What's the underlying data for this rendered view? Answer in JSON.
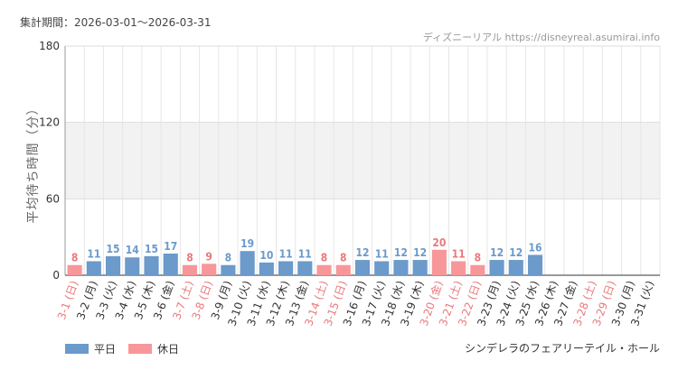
{
  "header": {
    "period": "集計期間：2026-03-01～2026-03-31",
    "credit": "ディズニーリアル https://disneyreal.asumirai.info"
  },
  "footer": {
    "attraction": "シンデレラのフェアリーテイル・ホール"
  },
  "colors": {
    "weekday": "#6b9acb",
    "holiday": "#f7979a",
    "holiday_label": "#e9797d",
    "band": "#f2f2f2",
    "grid": "#e6e6e6",
    "axis": "#333333"
  },
  "chart_data": {
    "type": "bar",
    "ylabel": "平均待ち時間（分）",
    "ylim": [
      0,
      180
    ],
    "yticks": [
      0,
      60,
      120,
      180
    ],
    "shaded_band": [
      60,
      120
    ],
    "grid": true,
    "legend_position": "bottom-left",
    "legend": [
      {
        "name": "平日",
        "key": "weekday"
      },
      {
        "name": "休日",
        "key": "holiday"
      }
    ],
    "categories": [
      "3-1 (日)",
      "3-2 (月)",
      "3-3 (火)",
      "3-4 (水)",
      "3-5 (木)",
      "3-6 (金)",
      "3-7 (土)",
      "3-8 (日)",
      "3-9 (月)",
      "3-10 (火)",
      "3-11 (水)",
      "3-12 (木)",
      "3-13 (金)",
      "3-14 (土)",
      "3-15 (日)",
      "3-16 (月)",
      "3-17 (火)",
      "3-18 (水)",
      "3-19 (木)",
      "3-20 (金)",
      "3-21 (土)",
      "3-22 (日)",
      "3-23 (月)",
      "3-24 (火)",
      "3-25 (水)",
      "3-26 (木)",
      "3-27 (金)",
      "3-28 (土)",
      "3-29 (日)",
      "3-30 (月)",
      "3-31 (火)"
    ],
    "values": [
      8,
      11,
      15,
      14,
      15,
      17,
      8,
      9,
      8,
      19,
      10,
      11,
      11,
      8,
      8,
      12,
      11,
      12,
      12,
      20,
      11,
      8,
      12,
      12,
      16,
      null,
      null,
      null,
      null,
      null,
      null
    ],
    "holiday": [
      true,
      false,
      false,
      false,
      false,
      false,
      true,
      true,
      false,
      false,
      false,
      false,
      false,
      true,
      true,
      false,
      false,
      false,
      false,
      true,
      true,
      true,
      false,
      false,
      false,
      false,
      false,
      true,
      true,
      false,
      false
    ]
  }
}
